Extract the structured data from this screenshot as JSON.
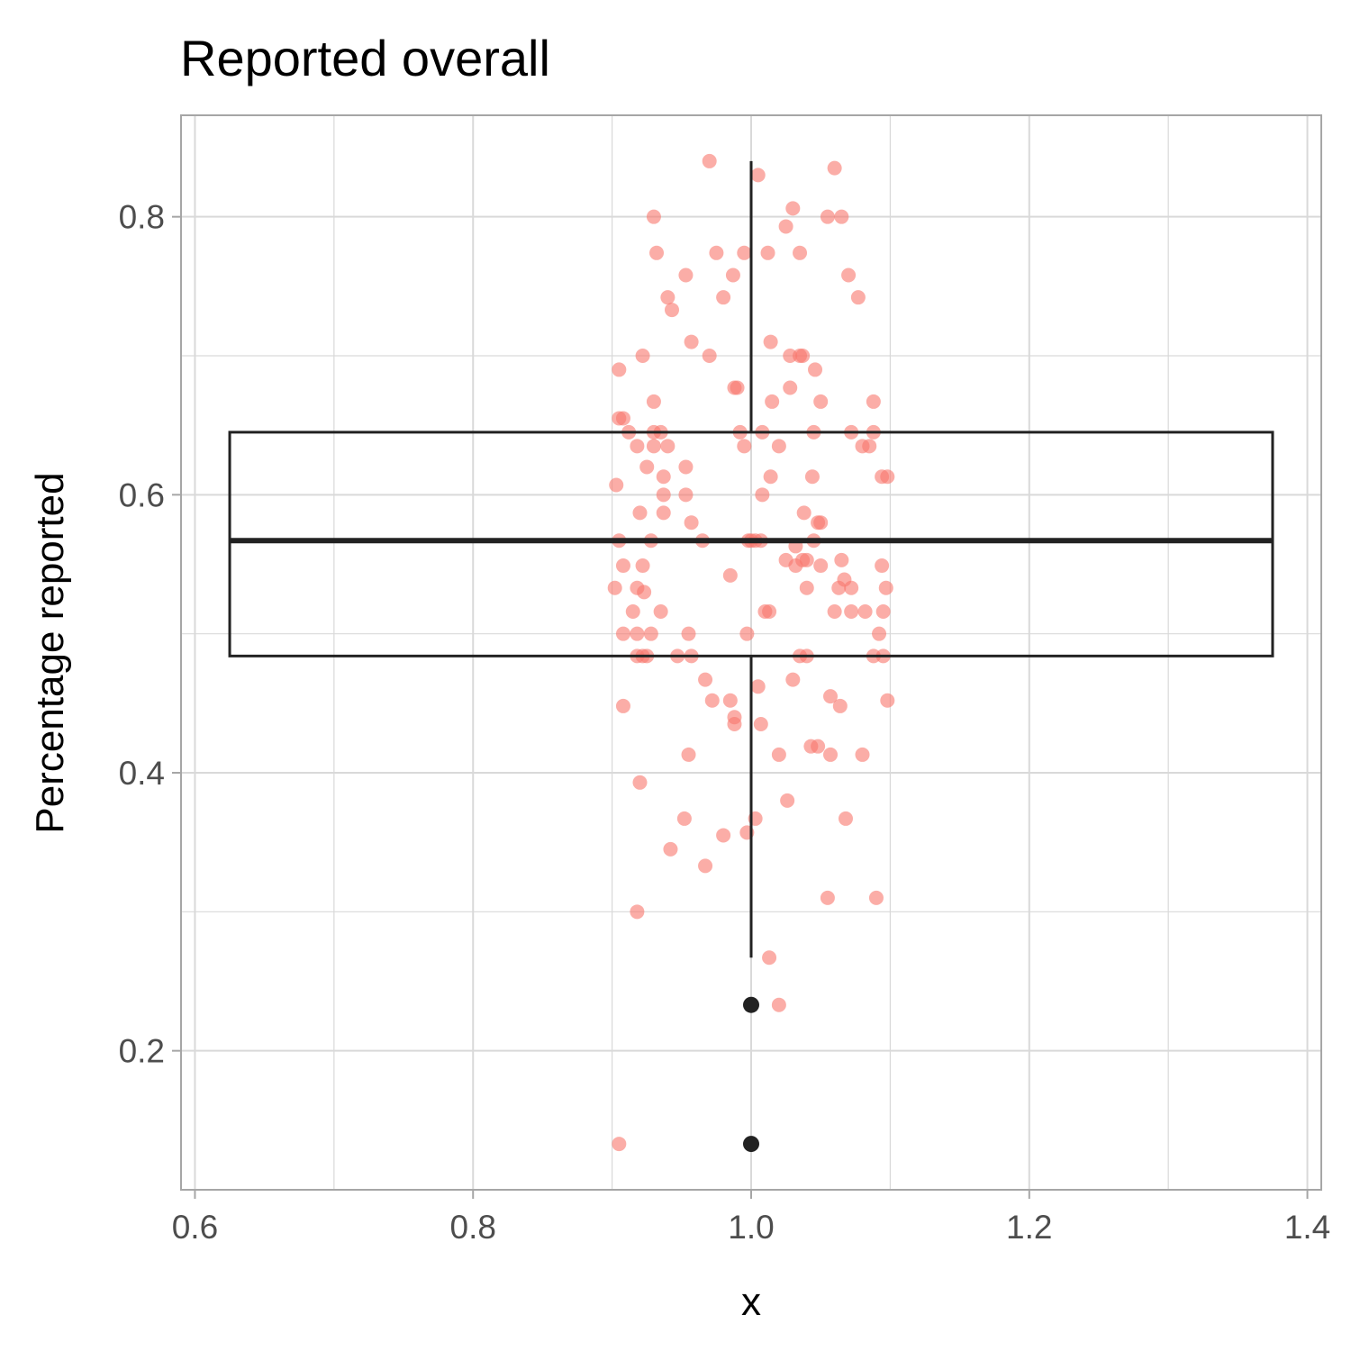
{
  "chart_data": {
    "type": "boxplot",
    "title": "Reported overall",
    "xlabel": "x",
    "ylabel": "Percentage reported",
    "xlim": [
      0.59,
      1.41
    ],
    "ylim": [
      0.1,
      0.873
    ],
    "x_ticks": [
      0.6,
      0.8,
      1.0,
      1.2,
      1.4
    ],
    "x_tick_labels": [
      "0.6",
      "0.8",
      "1.0",
      "1.2",
      "1.4"
    ],
    "y_ticks": [
      0.2,
      0.4,
      0.6,
      0.8
    ],
    "y_tick_labels": [
      "0.2",
      "0.4",
      "0.6",
      "0.8"
    ],
    "grid": true,
    "colors": {
      "points": "#F8766D",
      "box": "#222222",
      "grid": "#d9d9d9",
      "panel_border": "#a6a6a6"
    },
    "box": {
      "x": 1.0,
      "x_range": [
        0.625,
        1.375
      ],
      "q1": 0.484,
      "median": 0.567,
      "q3": 0.645,
      "whisker_low": 0.267,
      "whisker_high": 0.84,
      "outliers": [
        0.233,
        0.133
      ]
    },
    "jitter_points": [
      [
        0.97,
        0.84
      ],
      [
        1.005,
        0.83
      ],
      [
        1.06,
        0.835
      ],
      [
        1.03,
        0.806
      ],
      [
        0.93,
        0.8
      ],
      [
        1.055,
        0.8
      ],
      [
        1.065,
        0.8
      ],
      [
        1.025,
        0.793
      ],
      [
        0.932,
        0.774
      ],
      [
        0.975,
        0.774
      ],
      [
        0.995,
        0.774
      ],
      [
        1.012,
        0.774
      ],
      [
        1.035,
        0.774
      ],
      [
        0.953,
        0.758
      ],
      [
        0.987,
        0.758
      ],
      [
        1.07,
        0.758
      ],
      [
        0.94,
        0.742
      ],
      [
        0.98,
        0.742
      ],
      [
        1.077,
        0.742
      ],
      [
        0.943,
        0.733
      ],
      [
        0.957,
        0.71
      ],
      [
        1.014,
        0.71
      ],
      [
        0.922,
        0.7
      ],
      [
        0.97,
        0.7
      ],
      [
        1.028,
        0.7
      ],
      [
        1.035,
        0.7
      ],
      [
        1.037,
        0.7
      ],
      [
        0.905,
        0.69
      ],
      [
        1.046,
        0.69
      ],
      [
        0.988,
        0.677
      ],
      [
        0.99,
        0.677
      ],
      [
        1.028,
        0.677
      ],
      [
        0.93,
        0.667
      ],
      [
        1.015,
        0.667
      ],
      [
        1.05,
        0.667
      ],
      [
        1.088,
        0.667
      ],
      [
        0.905,
        0.655
      ],
      [
        0.908,
        0.655
      ],
      [
        0.912,
        0.645
      ],
      [
        0.93,
        0.645
      ],
      [
        0.935,
        0.645
      ],
      [
        0.992,
        0.645
      ],
      [
        1.008,
        0.645
      ],
      [
        1.045,
        0.645
      ],
      [
        1.072,
        0.645
      ],
      [
        1.088,
        0.645
      ],
      [
        0.918,
        0.635
      ],
      [
        0.93,
        0.635
      ],
      [
        0.94,
        0.635
      ],
      [
        0.995,
        0.635
      ],
      [
        1.02,
        0.635
      ],
      [
        1.08,
        0.635
      ],
      [
        1.085,
        0.635
      ],
      [
        0.925,
        0.62
      ],
      [
        0.953,
        0.62
      ],
      [
        0.937,
        0.613
      ],
      [
        1.014,
        0.613
      ],
      [
        1.044,
        0.613
      ],
      [
        1.094,
        0.613
      ],
      [
        1.098,
        0.613
      ],
      [
        0.903,
        0.607
      ],
      [
        0.937,
        0.6
      ],
      [
        0.953,
        0.6
      ],
      [
        1.008,
        0.6
      ],
      [
        0.92,
        0.587
      ],
      [
        0.937,
        0.587
      ],
      [
        1.038,
        0.587
      ],
      [
        0.957,
        0.58
      ],
      [
        1.048,
        0.58
      ],
      [
        1.05,
        0.58
      ],
      [
        0.905,
        0.567
      ],
      [
        0.928,
        0.567
      ],
      [
        0.965,
        0.567
      ],
      [
        0.998,
        0.567
      ],
      [
        1.0,
        0.567
      ],
      [
        1.003,
        0.567
      ],
      [
        1.007,
        0.567
      ],
      [
        1.045,
        0.567
      ],
      [
        1.032,
        0.563
      ],
      [
        1.025,
        0.553
      ],
      [
        1.037,
        0.553
      ],
      [
        1.04,
        0.553
      ],
      [
        1.065,
        0.553
      ],
      [
        0.908,
        0.549
      ],
      [
        0.922,
        0.549
      ],
      [
        1.032,
        0.549
      ],
      [
        1.05,
        0.549
      ],
      [
        1.094,
        0.549
      ],
      [
        0.985,
        0.542
      ],
      [
        1.067,
        0.539
      ],
      [
        0.902,
        0.533
      ],
      [
        0.918,
        0.533
      ],
      [
        0.923,
        0.53
      ],
      [
        1.04,
        0.533
      ],
      [
        1.063,
        0.533
      ],
      [
        1.072,
        0.533
      ],
      [
        1.097,
        0.533
      ],
      [
        0.915,
        0.516
      ],
      [
        0.935,
        0.516
      ],
      [
        1.01,
        0.516
      ],
      [
        1.013,
        0.516
      ],
      [
        1.06,
        0.516
      ],
      [
        1.072,
        0.516
      ],
      [
        1.082,
        0.516
      ],
      [
        1.095,
        0.516
      ],
      [
        0.908,
        0.5
      ],
      [
        0.918,
        0.5
      ],
      [
        0.928,
        0.5
      ],
      [
        0.955,
        0.5
      ],
      [
        0.997,
        0.5
      ],
      [
        1.092,
        0.5
      ],
      [
        0.918,
        0.484
      ],
      [
        0.922,
        0.484
      ],
      [
        0.925,
        0.484
      ],
      [
        0.947,
        0.484
      ],
      [
        0.957,
        0.484
      ],
      [
        1.035,
        0.484
      ],
      [
        1.04,
        0.484
      ],
      [
        1.088,
        0.484
      ],
      [
        1.095,
        0.484
      ],
      [
        0.967,
        0.467
      ],
      [
        1.03,
        0.467
      ],
      [
        1.005,
        0.462
      ],
      [
        1.057,
        0.455
      ],
      [
        0.972,
        0.452
      ],
      [
        0.985,
        0.452
      ],
      [
        1.098,
        0.452
      ],
      [
        0.908,
        0.448
      ],
      [
        1.064,
        0.448
      ],
      [
        0.988,
        0.44
      ],
      [
        0.988,
        0.435
      ],
      [
        1.007,
        0.435
      ],
      [
        1.043,
        0.419
      ],
      [
        1.048,
        0.419
      ],
      [
        0.955,
        0.413
      ],
      [
        1.02,
        0.413
      ],
      [
        1.057,
        0.413
      ],
      [
        1.08,
        0.413
      ],
      [
        0.92,
        0.393
      ],
      [
        1.026,
        0.38
      ],
      [
        0.952,
        0.367
      ],
      [
        1.003,
        0.367
      ],
      [
        1.068,
        0.367
      ],
      [
        0.98,
        0.355
      ],
      [
        0.997,
        0.357
      ],
      [
        0.942,
        0.345
      ],
      [
        0.967,
        0.333
      ],
      [
        1.055,
        0.31
      ],
      [
        1.09,
        0.31
      ],
      [
        0.918,
        0.3
      ],
      [
        1.013,
        0.267
      ],
      [
        1.02,
        0.233
      ],
      [
        0.905,
        0.133
      ]
    ]
  }
}
